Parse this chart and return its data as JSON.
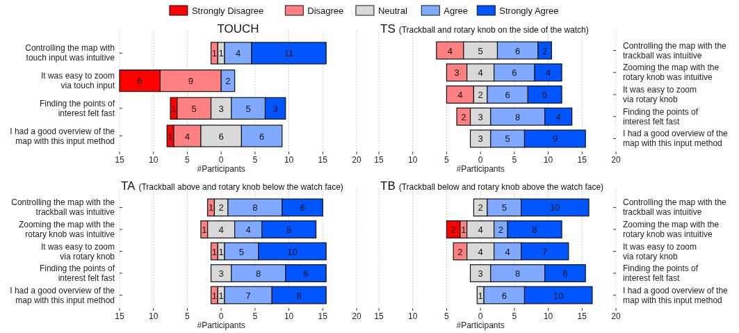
{
  "chart_data": [
    {
      "type": "bar",
      "title": "TOUCH",
      "orientation": "horizontal",
      "legend": "top",
      "grid": "x",
      "data_labels": true,
      "xlabel": "#Participants",
      "xlim": [
        -15,
        20
      ],
      "xticks": [
        {
          "value": -15,
          "label": "15"
        },
        {
          "value": -10,
          "label": "10"
        },
        {
          "value": -5,
          "label": "5"
        },
        0,
        5,
        10,
        15,
        20
      ],
      "categories": [
        "Controlling the map with\ntouch input was intuitive",
        "It was easy to zoom\nvia touch input",
        "Finding the points of\ninterest felt fast",
        "I had a good overview of the\nmap with this input method"
      ],
      "series": [
        {
          "name": "Strongly Disagree",
          "color": "#ff0000",
          "values": [
            null,
            6,
            1,
            1
          ],
          "base": [
            null,
            -15,
            -7.5,
            -8
          ]
        },
        {
          "name": "Disagree",
          "color": "#ff8080",
          "values": [
            1,
            9,
            5,
            4
          ],
          "base": [
            -1.5,
            -9,
            -6.5,
            -7
          ]
        },
        {
          "name": "Neutral",
          "color": "#d9d9d9",
          "values": [
            1,
            null,
            3,
            6
          ],
          "base": [
            -0.5,
            null,
            -1.5,
            -3
          ]
        },
        {
          "name": "Agree",
          "color": "#80aaff",
          "values": [
            4,
            2,
            5,
            6
          ],
          "base": [
            0.5,
            0,
            1.5,
            3
          ]
        },
        {
          "name": "Strongly Agree",
          "color": "#0055ff",
          "values": [
            11,
            null,
            3,
            null
          ],
          "base": [
            4.5,
            null,
            6.5,
            null
          ]
        }
      ]
    },
    {
      "type": "bar",
      "title": "TS",
      "subtitle": "(Trackball and rotary knob on the side of the watch)",
      "orientation": "horizontal",
      "grid": "x",
      "data_labels": true,
      "xlabel": "#Participants",
      "xlim": [
        -15,
        20
      ],
      "xticks": [
        {
          "value": -15,
          "label": "15"
        },
        {
          "value": -10,
          "label": "10"
        },
        {
          "value": -5,
          "label": "5"
        },
        0,
        5,
        10,
        15,
        20
      ],
      "categories": [
        "Controlling the map with the\ntrackball was intuitive",
        "Zooming the map with the\nrotary knob was intuitive",
        "It was easy to zoom\nvia rotary knob",
        "Finding the points of\ninterest felt fast",
        "I had a good overview of the\nmap with this input method"
      ],
      "series": [
        {
          "color": "#ff8080",
          "values": [
            4,
            3,
            4,
            2,
            null
          ],
          "base": [
            -6.5,
            -5,
            -5,
            -3.5,
            null
          ]
        },
        {
          "color": "#d9d9d9",
          "values": [
            5,
            4,
            2,
            3,
            3
          ],
          "base": [
            -2.5,
            -2,
            -1,
            -1.5,
            -1.5
          ]
        },
        {
          "color": "#80aaff",
          "values": [
            6,
            6,
            6,
            8,
            5
          ],
          "base": [
            2.5,
            2,
            1,
            1.5,
            1.5
          ]
        },
        {
          "color": "#0055ff",
          "values": [
            2,
            4,
            5,
            4,
            9
          ],
          "base": [
            8.5,
            8,
            7,
            9.5,
            6.5
          ]
        }
      ]
    },
    {
      "type": "bar",
      "title": "TA",
      "subtitle": "(Trackball above and rotary knob below the watch face)",
      "orientation": "horizontal",
      "grid": "x",
      "data_labels": true,
      "xlabel": "#Participants",
      "xlim": [
        -15,
        20
      ],
      "xticks": [
        {
          "value": -15,
          "label": "15"
        },
        {
          "value": -10,
          "label": "10"
        },
        {
          "value": -5,
          "label": "5"
        },
        0,
        5,
        10,
        15,
        20
      ],
      "categories": [
        "Controlling the map with the\ntrackball was intuitive",
        "Zooming the map with the\nrotary knob was intuitive",
        "It was easy to zoom\nvia rotary knob",
        "Finding the points of\ninterest felt fast",
        "I had a good overview of the\nmap with this input method"
      ],
      "series": [
        {
          "color": "#ff8080",
          "values": [
            1,
            1,
            1,
            null,
            1
          ],
          "base": [
            -2,
            -3,
            -1.5,
            null,
            -1.5
          ]
        },
        {
          "color": "#d9d9d9",
          "values": [
            2,
            4,
            1,
            3,
            1
          ],
          "base": [
            -1,
            -2,
            -0.5,
            -1.5,
            -0.5
          ]
        },
        {
          "color": "#80aaff",
          "values": [
            8,
            4,
            5,
            8,
            7
          ],
          "base": [
            1,
            2,
            0.5,
            1.5,
            0.5
          ]
        },
        {
          "color": "#0055ff",
          "values": [
            6,
            8,
            10,
            6,
            8
          ],
          "base": [
            9,
            6,
            5.5,
            9.5,
            7.5
          ]
        }
      ]
    },
    {
      "type": "bar",
      "title": "TB",
      "subtitle": "(Trackball below and rotary knob above the watch face)",
      "orientation": "horizontal",
      "grid": "x",
      "data_labels": true,
      "xlabel": "#Participants",
      "xlim": [
        -15,
        20
      ],
      "xticks": [
        {
          "value": -15,
          "label": "15"
        },
        {
          "value": -10,
          "label": "10"
        },
        {
          "value": -5,
          "label": "5"
        },
        0,
        5,
        10,
        15,
        20
      ],
      "categories": [
        "Controlling the map with the\ntrackball was intuitive",
        "Zooming the map with the\nrotary knob was intuitive",
        "It was easy to zoom\nvia rotary knob",
        "Finding the points of\ninterest felt fast",
        "I had a good overview of the\nmap with this input method"
      ],
      "series": [
        {
          "color": "#ff0000",
          "values": [
            null,
            2,
            null,
            null,
            null
          ],
          "base": [
            null,
            -5,
            null,
            null,
            null
          ]
        },
        {
          "color": "#ff8080",
          "values": [
            null,
            1,
            2,
            null,
            null
          ],
          "base": [
            null,
            -3,
            -4,
            null,
            null
          ]
        },
        {
          "color": "#d9d9d9",
          "values": [
            2,
            4,
            4,
            3,
            1
          ],
          "base": [
            -1,
            -2,
            -2,
            -1.5,
            -0.5
          ]
        },
        {
          "color": "#80aaff",
          "values": [
            5,
            2,
            4,
            8,
            6
          ],
          "base": [
            1,
            2,
            2,
            1.5,
            0.5
          ]
        },
        {
          "color": "#0055ff",
          "values": [
            10,
            8,
            7,
            6,
            10
          ],
          "base": [
            6,
            4,
            6,
            9.5,
            6.5
          ]
        }
      ]
    }
  ]
}
